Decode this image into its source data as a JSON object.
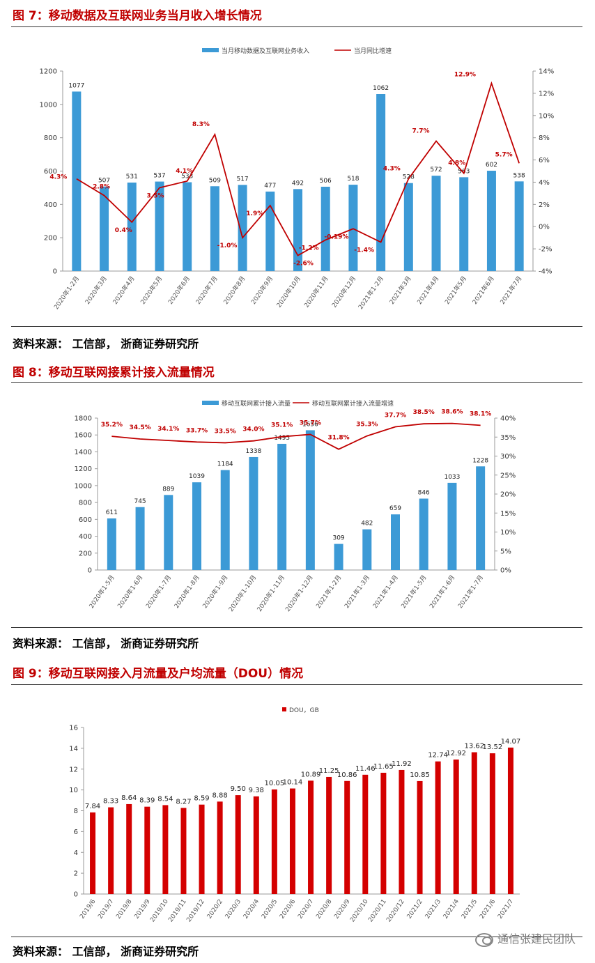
{
  "figures": [
    {
      "title": "图 7：移动数据及互联网业务当月收入增长情况",
      "source": "资料来源：  工信部，  浙商证券研究所",
      "chart_data": {
        "type": "bar+line",
        "categories": [
          "2020年1-2月",
          "2020年3月",
          "2020年4月",
          "2020年5月",
          "2020年6月",
          "2020年7月",
          "2020年8月",
          "2020年9月",
          "2020年10月",
          "2020年11月",
          "2020年12月",
          "2021年1-2月",
          "2021年3月",
          "2021年4月",
          "2021年5月",
          "2021年6月",
          "2021年7月"
        ],
        "series": [
          {
            "name": "当月移动数据及互联网业务收入",
            "type": "bar",
            "axis": "left",
            "color": "#3c9ad6",
            "values": [
              1077,
              507,
              531,
              537,
              533,
              509,
              517,
              477,
              492,
              506,
              518,
              1062,
              528,
              572,
              563,
              602,
              538
            ],
            "labels": [
              "1077",
              "507",
              "531",
              "537",
              "533",
              "509",
              "517",
              "477",
              "492",
              "506",
              "518",
              "1062",
              "528",
              "572",
              "563",
              "602",
              "538"
            ]
          },
          {
            "name": "当月同比增速",
            "type": "line",
            "axis": "right",
            "color": "#c00000",
            "values": [
              4.3,
              2.8,
              0.4,
              3.5,
              4.1,
              8.3,
              -1.0,
              1.9,
              -2.6,
              -1.2,
              -0.19,
              -1.4,
              4.3,
              7.7,
              4.8,
              12.9,
              5.7
            ],
            "labels": [
              "4.3%",
              "2.8%",
              "0.4%",
              "3.5%",
              "4.1%",
              "8.3%",
              "-1.0%",
              "1.9%",
              "-2.6%",
              "-1.2%",
              "-0.19%",
              "-1.4%",
              "4.3%",
              "7.7%",
              "4.8%",
              "12.9%",
              "5.7%"
            ]
          }
        ],
        "y_left": {
          "min": 0,
          "max": 1200,
          "ticks": [
            0,
            200,
            400,
            600,
            800,
            1000,
            1200
          ],
          "tick_labels": [
            "0",
            "200",
            "400",
            "600",
            "800",
            "1000",
            "1200"
          ]
        },
        "y_right": {
          "min": -4,
          "max": 14,
          "ticks": [
            -4,
            -2,
            0,
            2,
            4,
            6,
            8,
            10,
            12,
            14
          ],
          "tick_labels": [
            "-4%",
            "-2%",
            "0%",
            "2%",
            "4%",
            "6%",
            "8%",
            "10%",
            "12%",
            "14%"
          ]
        },
        "legend": "top-center",
        "grid": false
      }
    },
    {
      "title": "图 8：移动互联网接累计接入流量情况",
      "source": "资料来源：  工信部，  浙商证券研究所",
      "chart_data": {
        "type": "bar+line",
        "categories": [
          "2020年1-5月",
          "2020年1-6月",
          "2020年1-7月",
          "2020年1-8月",
          "2020年1-9月",
          "2020年1-10月",
          "2020年1-11月",
          "2020年1-12月",
          "2021年1-2月",
          "2021年1-3月",
          "2021年1-4月",
          "2021年1-5月",
          "2021年1-6月",
          "2021年1-7月"
        ],
        "series": [
          {
            "name": "移动互联网累计接入流量",
            "type": "bar",
            "axis": "left",
            "color": "#3c9ad6",
            "values": [
              611,
              745,
              889,
              1039,
              1184,
              1338,
              1495,
              1656,
              309,
              482,
              659,
              846,
              1033,
              1228
            ],
            "labels": [
              "611",
              "745",
              "889",
              "1039",
              "1184",
              "1338",
              "1495",
              "1656",
              "309",
              "482",
              "659",
              "846",
              "1033",
              "1228"
            ]
          },
          {
            "name": "移动互联网累计接入流量增速",
            "type": "line",
            "axis": "right",
            "color": "#c00000",
            "values": [
              35.2,
              34.5,
              34.1,
              33.7,
              33.5,
              34.0,
              35.1,
              35.7,
              31.8,
              35.3,
              37.7,
              38.5,
              38.6,
              38.1
            ],
            "labels": [
              "35.2%",
              "34.5%",
              "34.1%",
              "33.7%",
              "33.5%",
              "34.0%",
              "35.1%",
              "35.7%",
              "31.8%",
              "35.3%",
              "37.7%",
              "38.5%",
              "38.6%",
              "38.1%"
            ]
          }
        ],
        "y_left": {
          "min": 0,
          "max": 1800,
          "ticks": [
            0,
            200,
            400,
            600,
            800,
            1000,
            1200,
            1400,
            1600,
            1800
          ],
          "tick_labels": [
            "0",
            "200",
            "400",
            "600",
            "800",
            "1000",
            "1200",
            "1400",
            "1600",
            "1800"
          ]
        },
        "y_right": {
          "min": 0,
          "max": 40,
          "ticks": [
            0,
            5,
            10,
            15,
            20,
            25,
            30,
            35,
            40
          ],
          "tick_labels": [
            "0%",
            "5%",
            "10%",
            "15%",
            "20%",
            "25%",
            "30%",
            "35%",
            "40%"
          ]
        },
        "legend": "top-center",
        "grid": false
      }
    },
    {
      "title": "图 9：移动互联网接入月流量及户均流量（DOU）情况",
      "source": "资料来源：  工信部，  浙商证券研究所",
      "chart_data": {
        "type": "bar",
        "categories": [
          "2019/6",
          "2019/7",
          "2019/8",
          "2019/9",
          "2019/10",
          "2019/11",
          "2019/12",
          "2020/2",
          "2020/3",
          "2020/4",
          "2020/5",
          "2020/6",
          "2020/7",
          "2020/8",
          "2020/9",
          "2020/10",
          "2020/11",
          "2020/12",
          "2021/2",
          "2021/3",
          "2021/4",
          "2021/5",
          "2021/6",
          "2021/7"
        ],
        "series": [
          {
            "name": "DOU，GB",
            "type": "bar",
            "axis": "left",
            "color": "#d40000",
            "values": [
              7.84,
              8.33,
              8.64,
              8.39,
              8.54,
              8.27,
              8.59,
              8.88,
              9.5,
              9.38,
              10.05,
              10.14,
              10.89,
              11.25,
              10.86,
              11.46,
              11.65,
              11.92,
              10.85,
              12.74,
              12.92,
              13.62,
              13.52,
              14.07
            ],
            "labels": [
              "7.84",
              "8.33",
              "8.64",
              "8.39",
              "8.54",
              "8.27",
              "8.59",
              "8.88",
              "9.50",
              "9.38",
              "10.05",
              "10.14",
              "10.89",
              "11.25",
              "10.86",
              "11.46",
              "11.65",
              "11.92",
              "10.85",
              "12.74",
              "12.92",
              "13.62",
              "13.52",
              "14.07"
            ]
          }
        ],
        "y_left": {
          "min": 0,
          "max": 16,
          "ticks": [
            0,
            2,
            4,
            6,
            8,
            10,
            12,
            14,
            16
          ],
          "tick_labels": [
            "0",
            "2",
            "4",
            "6",
            "8",
            "10",
            "12",
            "14",
            "16"
          ]
        },
        "legend": "top-center",
        "grid": false
      }
    }
  ],
  "watermark": "通信张建民团队"
}
